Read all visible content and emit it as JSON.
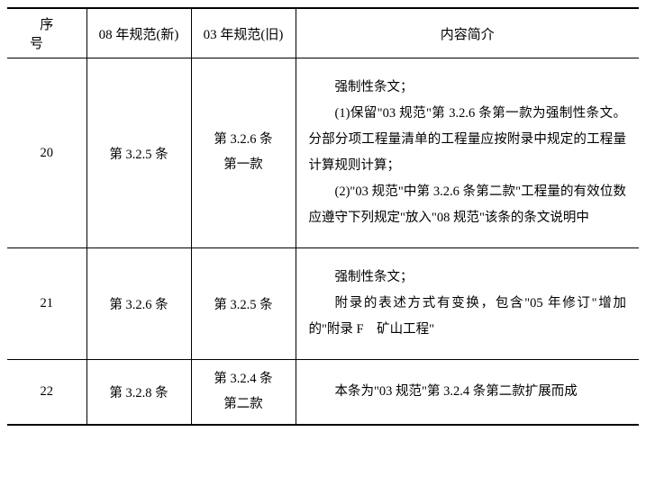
{
  "table": {
    "headers": {
      "seq": "序号",
      "new_spec": "08 年规范(新)",
      "old_spec": "03 年规范(旧)",
      "desc": "内容简介"
    },
    "rows": [
      {
        "seq": "20",
        "new_spec": "第 3.2.5 条",
        "old_spec_line1": "第 3.2.6 条",
        "old_spec_line2": "第一款",
        "desc_p1": "强制性条文；",
        "desc_p2": "(1)保留\"03 规范\"第 3.2.6 条第一款为强制性条文。分部分项工程量清单的工程量应按附录中规定的工程量计算规则计算；",
        "desc_p3": "(2)\"03 规范\"中第 3.2.6 条第二款\"工程量的有效位数应遵守下列规定\"放入\"08 规范\"该条的条文说明中"
      },
      {
        "seq": "21",
        "new_spec": "第 3.2.6 条",
        "old_spec": "第 3.2.5 条",
        "desc_p1": "强制性条文；",
        "desc_p2": "附录的表述方式有变换，包含\"05 年修订\"增加的\"附录 F　矿山工程\""
      },
      {
        "seq": "22",
        "new_spec": "第 3.2.8 条",
        "old_spec_line1": "第 3.2.4 条",
        "old_spec_line2": "第二款",
        "desc_p1": "本条为\"03 规范\"第 3.2.4 条第二款扩展而成"
      }
    ]
  }
}
